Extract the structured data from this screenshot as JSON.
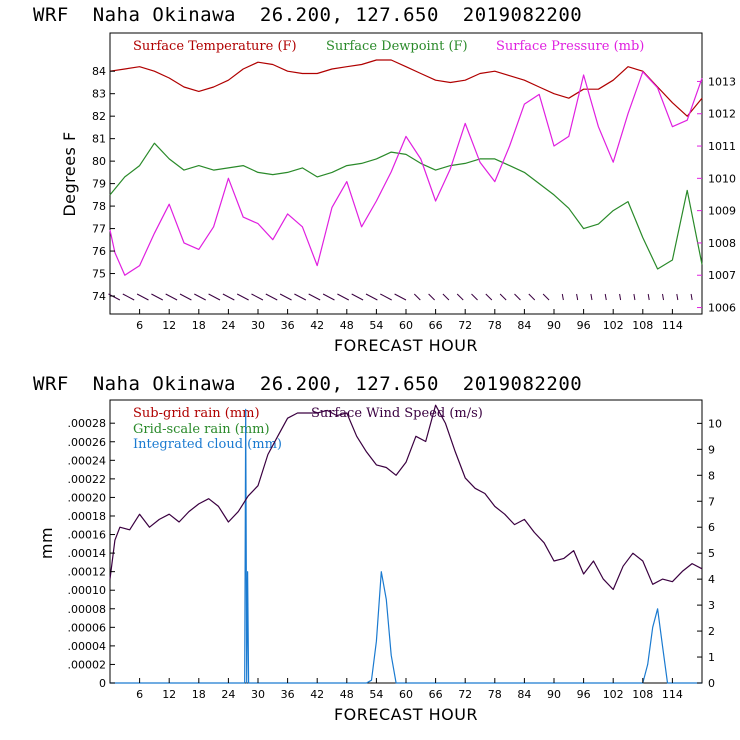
{
  "colors": {
    "temperature": "#b00000",
    "dewpoint": "#2a8a2a",
    "pressure": "#e020e0",
    "subgrid_rain": "#b00000",
    "gridscale_rain": "#2a8a2a",
    "cloud": "#1a7ad0",
    "wind": "#3a0040"
  },
  "chart_data": [
    {
      "type": "line",
      "title": "WRF  Naha Okinawa  26.200, 127.650  2019082200",
      "xlabel": "FORECAST HOUR",
      "ylabel": "Degrees F",
      "xlim": [
        0,
        120
      ],
      "xticks": [
        "6",
        "12",
        "18",
        "24",
        "30",
        "36",
        "42",
        "48",
        "54",
        "60",
        "66",
        "72",
        "78",
        "84",
        "90",
        "96",
        "102",
        "108",
        "114"
      ],
      "ylim": [
        73.2,
        85.7
      ],
      "yticks": [
        "74",
        "75",
        "76",
        "77",
        "78",
        "79",
        "80",
        "81",
        "82",
        "83",
        "84"
      ],
      "y2lim": [
        1005.8,
        1014.5
      ],
      "y2ticks": [
        "1006",
        "1007",
        "1008",
        "1009",
        "1010",
        "1011",
        "1012",
        "1013"
      ],
      "legend": [
        "Surface Temperature (F)",
        "Surface Dewpoint (F)",
        "Surface Pressure (mb)"
      ],
      "series": [
        {
          "name": "Surface Temperature (F)",
          "axis": "left",
          "x": [
            0,
            3,
            6,
            9,
            12,
            15,
            18,
            21,
            24,
            27,
            30,
            33,
            36,
            39,
            42,
            45,
            48,
            51,
            54,
            57,
            60,
            63,
            66,
            69,
            72,
            75,
            78,
            81,
            84,
            87,
            90,
            93,
            96,
            99,
            102,
            105,
            108,
            111,
            114,
            117,
            120
          ],
          "values": [
            84.0,
            84.1,
            84.2,
            84.0,
            83.7,
            83.3,
            83.1,
            83.3,
            83.6,
            84.1,
            84.4,
            84.3,
            84.0,
            83.9,
            83.9,
            84.1,
            84.2,
            84.3,
            84.5,
            84.5,
            84.2,
            83.9,
            83.6,
            83.5,
            83.6,
            83.9,
            84.0,
            83.8,
            83.6,
            83.3,
            83.0,
            82.8,
            83.2,
            83.2,
            83.6,
            84.2,
            84.0,
            83.3,
            82.6,
            82.0,
            82.8
          ]
        },
        {
          "name": "Surface Dewpoint (F)",
          "axis": "left",
          "x": [
            0,
            3,
            6,
            9,
            12,
            15,
            18,
            21,
            24,
            27,
            30,
            33,
            36,
            39,
            42,
            45,
            48,
            51,
            54,
            57,
            60,
            63,
            66,
            69,
            72,
            75,
            78,
            81,
            84,
            87,
            90,
            93,
            96,
            99,
            102,
            105,
            108,
            111,
            114,
            117,
            120
          ],
          "values": [
            78.5,
            79.3,
            79.8,
            80.8,
            80.1,
            79.6,
            79.8,
            79.6,
            79.7,
            79.8,
            79.5,
            79.4,
            79.5,
            79.7,
            79.3,
            79.5,
            79.8,
            79.9,
            80.1,
            80.4,
            80.3,
            79.9,
            79.6,
            79.8,
            79.9,
            80.1,
            80.1,
            79.8,
            79.5,
            79.0,
            78.5,
            77.9,
            77.0,
            77.2,
            77.8,
            78.2,
            76.6,
            75.2,
            75.6,
            78.7,
            75.4
          ]
        },
        {
          "name": "Surface Pressure (mb)",
          "axis": "right",
          "x": [
            0,
            1,
            3,
            6,
            9,
            12,
            15,
            18,
            21,
            24,
            27,
            30,
            33,
            36,
            39,
            42,
            45,
            48,
            51,
            54,
            57,
            60,
            63,
            66,
            69,
            72,
            75,
            78,
            81,
            84,
            87,
            90,
            93,
            96,
            99,
            102,
            105,
            108,
            111,
            114,
            117,
            120
          ],
          "values": [
            1008.4,
            1007.7,
            1007.0,
            1007.3,
            1008.3,
            1009.2,
            1008.0,
            1007.8,
            1008.5,
            1010.0,
            1008.8,
            1008.6,
            1008.1,
            1008.9,
            1008.5,
            1007.3,
            1009.1,
            1009.9,
            1008.5,
            1009.3,
            1010.2,
            1011.3,
            1010.6,
            1009.3,
            1010.3,
            1011.7,
            1010.5,
            1009.9,
            1011.0,
            1012.3,
            1012.6,
            1011.0,
            1011.3,
            1013.2,
            1011.6,
            1010.5,
            1012.0,
            1013.3,
            1012.8,
            1011.6,
            1011.8,
            1013.1
          ]
        }
      ],
      "wind_barbs": "hourly wind barbs along bottom of plot"
    },
    {
      "type": "line",
      "title": "WRF  Naha Okinawa  26.200, 127.650  2019082200",
      "xlabel": "FORECAST HOUR",
      "ylabel": "mm",
      "xlim": [
        0,
        120
      ],
      "xticks": [
        "6",
        "12",
        "18",
        "24",
        "30",
        "36",
        "42",
        "48",
        "54",
        "60",
        "66",
        "72",
        "78",
        "84",
        "90",
        "96",
        "102",
        "108",
        "114"
      ],
      "ylim": [
        0,
        0.000305
      ],
      "yticks": [
        "0",
        ".00002",
        ".00004",
        ".00006",
        ".00008",
        ".00010",
        ".00012",
        ".00014",
        ".00016",
        ".00018",
        ".00020",
        ".00022",
        ".00024",
        ".00026",
        ".00028"
      ],
      "y2lim": [
        0,
        10.9
      ],
      "y2ticks": [
        "0",
        "1",
        "2",
        "3",
        "4",
        "5",
        "6",
        "7",
        "8",
        "9",
        "10"
      ],
      "legend": [
        "Sub-grid rain (mm)",
        "Grid-scale rain (mm)",
        "Integrated cloud (mm)",
        "Surface Wind Speed (m/s)"
      ],
      "series": [
        {
          "name": "Surface Wind Speed (m/s)",
          "axis": "right",
          "x": [
            0,
            1,
            2,
            4,
            6,
            8,
            10,
            12,
            14,
            16,
            18,
            20,
            22,
            24,
            26,
            28,
            30,
            32,
            34,
            36,
            38,
            40,
            42,
            44,
            46,
            48,
            50,
            52,
            54,
            56,
            58,
            60,
            62,
            64,
            66,
            68,
            70,
            72,
            74,
            76,
            78,
            80,
            82,
            84,
            86,
            88,
            90,
            92,
            94,
            96,
            98,
            100,
            102,
            104,
            106,
            108,
            110,
            112,
            114,
            116,
            118,
            120
          ],
          "values": [
            4.0,
            5.5,
            6.0,
            5.9,
            6.5,
            6.0,
            6.3,
            6.5,
            6.2,
            6.6,
            6.9,
            7.1,
            6.8,
            6.2,
            6.6,
            7.2,
            7.6,
            8.8,
            9.5,
            10.2,
            10.4,
            10.4,
            10.4,
            10.5,
            10.3,
            10.4,
            9.5,
            8.9,
            8.4,
            8.3,
            8.0,
            8.5,
            9.5,
            9.3,
            10.7,
            10.0,
            8.9,
            7.9,
            7.5,
            7.3,
            6.8,
            6.5,
            6.1,
            6.3,
            5.8,
            5.4,
            4.7,
            4.8,
            5.1,
            4.2,
            4.7,
            4.0,
            3.6,
            4.5,
            5.0,
            4.7,
            3.8,
            4.0,
            3.9,
            4.3,
            4.6,
            4.4
          ]
        },
        {
          "name": "Integrated cloud (mm)",
          "axis": "left",
          "x": [
            0,
            27.3,
            27.5,
            27.7,
            27.9,
            28.1,
            28.3,
            50,
            52,
            53,
            54,
            55,
            56,
            57,
            58,
            60,
            108,
            109,
            110,
            111,
            112,
            113,
            120
          ],
          "values": [
            0,
            0,
            0.000295,
            0,
            0.00012,
            0,
            0,
            0,
            0,
            3e-06,
            4.5e-05,
            0.00012,
            9e-05,
            3e-05,
            0,
            0,
            0,
            2e-05,
            6e-05,
            8e-05,
            4e-05,
            0,
            0
          ]
        }
      ]
    }
  ]
}
